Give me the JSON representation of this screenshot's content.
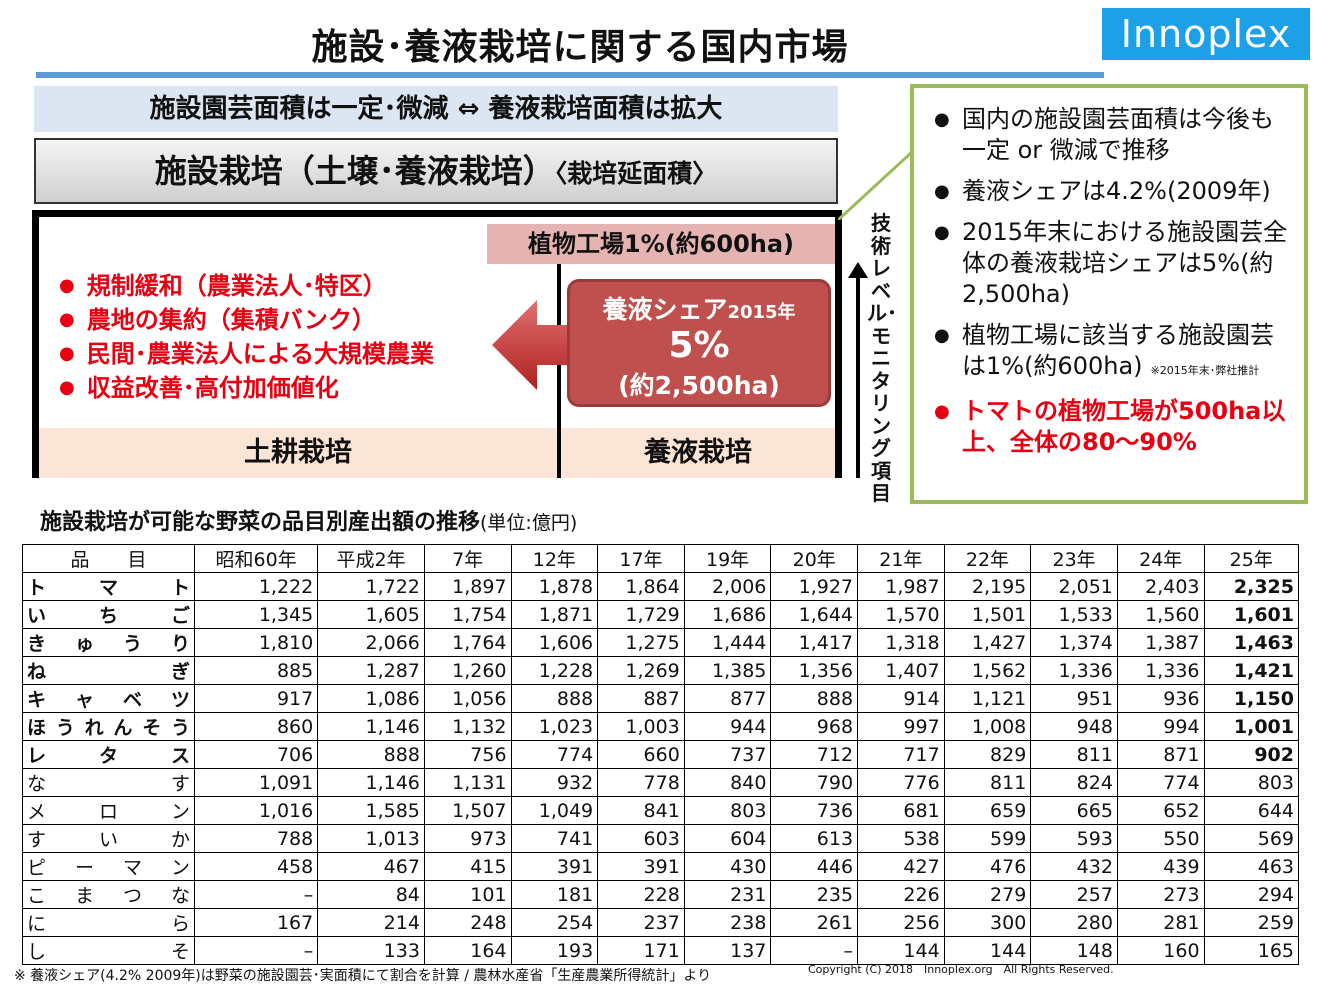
{
  "title": "施設･養液栽培に関する国内市場",
  "logo": "Innoplex",
  "band1": "施設園芸面積は一定･微減 ⇔ 養液栽培面積は拡大",
  "band2": {
    "main": "施設栽培（土壌･養液栽培）",
    "sub": "〈栽培延面積〉"
  },
  "plant_factory": "植物工場1%(約600ha)",
  "red_bullets": [
    "規制緩和（農業法人･特区）",
    "農地の集約（集積バンク）",
    "民間･農業法人による大規模農業",
    "収益改善･高付加価値化"
  ],
  "share_box": {
    "label": "養液シェア",
    "year": "2015年",
    "value": "5%",
    "area": "(約2,500ha)"
  },
  "soil_label": "土耕栽培",
  "hydro_label": "養液栽培",
  "vertical_label": "技術レベル･モニタリング項目",
  "right_bullets": [
    {
      "text": "国内の施設園芸面積は今後も一定 or 微減で推移",
      "note": ""
    },
    {
      "text": "養液シェアは4.2%(2009年)",
      "note": ""
    },
    {
      "text": "2015年末における施設園芸全体の養液栽培シェアは5%(約2,500ha)",
      "note": ""
    },
    {
      "text": "植物工場に該当する施設園芸は1%(約600ha)",
      "note": "※2015年末･弊社推計"
    }
  ],
  "right_red_bullet": "トマトの植物工場が500ha以上、全体の80～90%",
  "table_title": "施設栽培が可能な野菜の品目別産出額の推移",
  "table_unit": "(単位:億円)",
  "table": {
    "header_item": "品　　目",
    "years": [
      "昭和60年",
      "平成2年",
      "7年",
      "12年",
      "17年",
      "19年",
      "20年",
      "21年",
      "22年",
      "23年",
      "24年",
      "25年"
    ],
    "rows": [
      {
        "name": "トマト",
        "bold": true,
        "values": [
          "1,222",
          "1,722",
          "1,897",
          "1,878",
          "1,864",
          "2,006",
          "1,927",
          "1,987",
          "2,195",
          "2,051",
          "2,403",
          "2,325"
        ]
      },
      {
        "name": "いちご",
        "bold": true,
        "values": [
          "1,345",
          "1,605",
          "1,754",
          "1,871",
          "1,729",
          "1,686",
          "1,644",
          "1,570",
          "1,501",
          "1,533",
          "1,560",
          "1,601"
        ]
      },
      {
        "name": "きゅうり",
        "bold": true,
        "values": [
          "1,810",
          "2,066",
          "1,764",
          "1,606",
          "1,275",
          "1,444",
          "1,417",
          "1,318",
          "1,427",
          "1,374",
          "1,387",
          "1,463"
        ]
      },
      {
        "name": "ねぎ",
        "bold": true,
        "values": [
          "885",
          "1,287",
          "1,260",
          "1,228",
          "1,269",
          "1,385",
          "1,356",
          "1,407",
          "1,562",
          "1,336",
          "1,336",
          "1,421"
        ]
      },
      {
        "name": "キャベツ",
        "bold": true,
        "values": [
          "917",
          "1,086",
          "1,056",
          "888",
          "887",
          "877",
          "888",
          "914",
          "1,121",
          "951",
          "936",
          "1,150"
        ]
      },
      {
        "name": "ほうれんそう",
        "bold": true,
        "values": [
          "860",
          "1,146",
          "1,132",
          "1,023",
          "1,003",
          "944",
          "968",
          "997",
          "1,008",
          "948",
          "994",
          "1,001"
        ]
      },
      {
        "name": "レタス",
        "bold": true,
        "values": [
          "706",
          "888",
          "756",
          "774",
          "660",
          "737",
          "712",
          "717",
          "829",
          "811",
          "871",
          "902"
        ]
      },
      {
        "name": "なす",
        "bold": false,
        "values": [
          "1,091",
          "1,146",
          "1,131",
          "932",
          "778",
          "840",
          "790",
          "776",
          "811",
          "824",
          "774",
          "803"
        ]
      },
      {
        "name": "メロン",
        "bold": false,
        "values": [
          "1,016",
          "1,585",
          "1,507",
          "1,049",
          "841",
          "803",
          "736",
          "681",
          "659",
          "665",
          "652",
          "644"
        ]
      },
      {
        "name": "すいか",
        "bold": false,
        "values": [
          "788",
          "1,013",
          "973",
          "741",
          "603",
          "604",
          "613",
          "538",
          "599",
          "593",
          "550",
          "569"
        ]
      },
      {
        "name": "ピーマン",
        "bold": false,
        "values": [
          "458",
          "467",
          "415",
          "391",
          "391",
          "430",
          "446",
          "427",
          "476",
          "432",
          "439",
          "463"
        ]
      },
      {
        "name": "こまつな",
        "bold": false,
        "values": [
          "–",
          "84",
          "101",
          "181",
          "228",
          "231",
          "235",
          "226",
          "279",
          "257",
          "273",
          "294"
        ]
      },
      {
        "name": "にら",
        "bold": false,
        "values": [
          "167",
          "214",
          "248",
          "254",
          "237",
          "238",
          "261",
          "256",
          "300",
          "280",
          "281",
          "259"
        ]
      },
      {
        "name": "しそ",
        "bold": false,
        "values": [
          "–",
          "133",
          "164",
          "193",
          "171",
          "137",
          "–",
          "144",
          "144",
          "148",
          "160",
          "165"
        ]
      }
    ]
  },
  "footnote": "※ 養液シェア(4.2% 2009年)は野菜の施設園芸･実面積にて割合を計算 / 農林水産省「生産農業所得統計」より",
  "copyright": "Copyright (C) 2018　Innoplex.org　All Rights Reserved.",
  "colors": {
    "accent_blue": "#5b9bd5",
    "logo_blue": "#1ea0e6",
    "red": "#e60012",
    "share_red": "#c0504d",
    "green_border": "#9bbb59"
  }
}
